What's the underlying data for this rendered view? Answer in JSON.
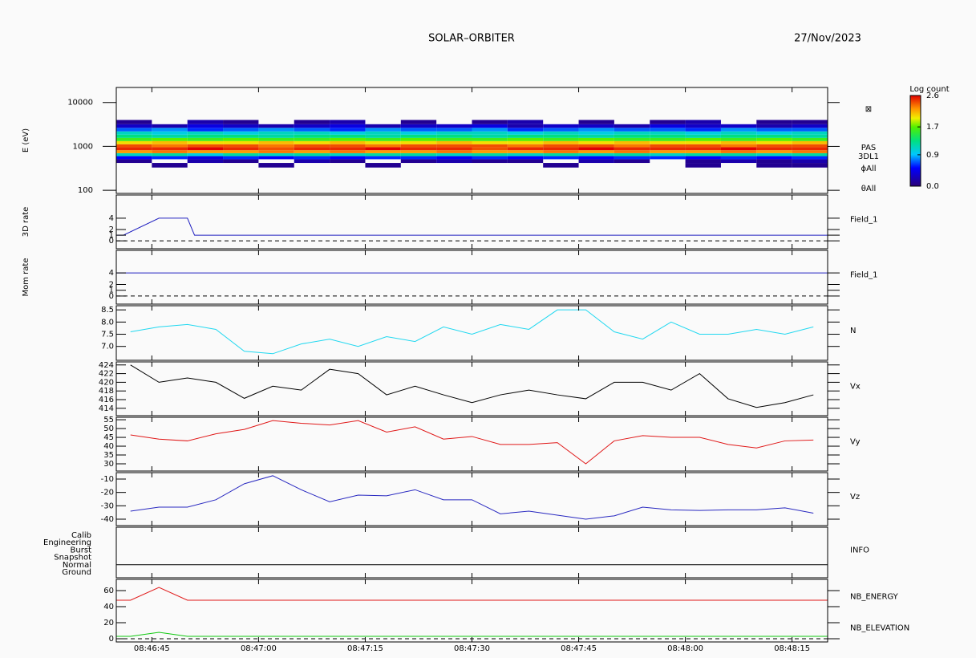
{
  "header": {
    "title": "SOLAR–ORBITER",
    "date": "27/Nov/2023"
  },
  "chart_data": [
    {
      "type": "heatmap",
      "ylabel": "E (eV)",
      "ylog": true,
      "ylim": [
        85,
        22000
      ],
      "yticks": [
        100,
        1000,
        10000
      ],
      "xlim": [
        "08:46:40",
        "08:48:20"
      ],
      "x_edges": [
        "08:46:40",
        "08:46:45",
        "08:46:50",
        "08:46:55",
        "08:47:00",
        "08:47:05",
        "08:47:10",
        "08:47:15",
        "08:47:20",
        "08:47:25",
        "08:47:30",
        "08:47:35",
        "08:47:40",
        "08:47:45",
        "08:47:50",
        "08:47:55",
        "08:48:00",
        "08:48:05",
        "08:48:10",
        "08:48:15",
        "08:48:20"
      ],
      "y_edges": [
        330,
        420,
        510,
        600,
        700,
        820,
        960,
        1120,
        1320,
        1560,
        1850,
        2200,
        2650,
        3200,
        4000
      ],
      "z": [
        [
          null,
          0.1,
          null,
          null,
          0.1,
          null,
          null,
          0.1,
          null,
          null,
          null,
          null,
          0.1,
          null,
          null,
          null,
          0.1,
          null,
          0.1,
          0.1
        ],
        [
          0.1,
          null,
          0.2,
          0.1,
          null,
          0.2,
          0.1,
          null,
          0.1,
          0.2,
          0.1,
          0.1,
          null,
          0.2,
          0.1,
          null,
          0.1,
          0.2,
          0.1,
          0.2
        ],
        [
          0.5,
          0.6,
          0.4,
          0.6,
          0.5,
          0.6,
          0.5,
          0.6,
          0.6,
          0.5,
          0.6,
          0.5,
          0.6,
          0.5,
          0.6,
          0.6,
          0.5,
          0.6,
          0.5,
          0.6
        ],
        [
          1.1,
          1.2,
          1.0,
          1.2,
          1.1,
          1.2,
          1.1,
          1.2,
          1.2,
          1.1,
          1.2,
          1.1,
          1.2,
          1.1,
          1.2,
          1.1,
          1.2,
          1.2,
          1.1,
          1.2
        ],
        [
          2.2,
          2.3,
          2.2,
          2.2,
          2.3,
          2.2,
          2.3,
          2.2,
          2.2,
          2.3,
          2.2,
          2.2,
          2.3,
          2.2,
          2.3,
          2.2,
          2.2,
          2.3,
          2.2,
          2.3
        ],
        [
          2.5,
          2.5,
          2.6,
          2.5,
          2.4,
          2.5,
          2.5,
          2.6,
          2.5,
          2.5,
          2.4,
          2.5,
          2.5,
          2.6,
          2.5,
          2.5,
          2.5,
          2.6,
          2.5,
          2.5
        ],
        [
          2.4,
          2.3,
          2.4,
          2.4,
          2.3,
          2.4,
          2.4,
          2.3,
          2.4,
          2.4,
          2.4,
          2.3,
          2.4,
          2.4,
          2.3,
          2.4,
          2.4,
          2.3,
          2.4,
          2.4
        ],
        [
          2.0,
          2.1,
          2.0,
          2.0,
          2.1,
          2.0,
          2.1,
          2.0,
          2.0,
          2.1,
          2.0,
          2.0,
          2.1,
          2.0,
          2.1,
          2.0,
          2.0,
          2.1,
          2.0,
          2.1
        ],
        [
          1.6,
          1.7,
          1.6,
          1.7,
          1.6,
          1.6,
          1.7,
          1.6,
          1.7,
          1.6,
          1.6,
          1.7,
          1.6,
          1.7,
          1.6,
          1.6,
          1.7,
          1.6,
          1.7,
          1.6
        ],
        [
          1.3,
          1.2,
          1.3,
          1.3,
          1.2,
          1.3,
          1.3,
          1.2,
          1.3,
          1.3,
          1.2,
          1.3,
          1.3,
          1.2,
          1.3,
          1.3,
          1.2,
          1.3,
          1.3,
          1.2
        ],
        [
          1.1,
          1.0,
          1.1,
          1.0,
          1.1,
          1.1,
          1.0,
          1.1,
          1.0,
          1.1,
          1.1,
          1.0,
          1.1,
          1.0,
          1.1,
          1.1,
          1.0,
          1.1,
          1.0,
          1.1
        ],
        [
          0.7,
          0.8,
          0.6,
          0.7,
          0.8,
          0.7,
          0.6,
          0.8,
          0.7,
          0.7,
          0.8,
          0.6,
          0.7,
          0.8,
          0.7,
          0.7,
          0.6,
          0.8,
          0.7,
          0.7
        ],
        [
          0.3,
          0.2,
          0.4,
          0.3,
          0.2,
          0.3,
          0.4,
          0.2,
          0.3,
          0.3,
          0.4,
          0.2,
          0.3,
          0.3,
          0.2,
          0.4,
          0.3,
          0.3,
          0.2,
          0.3
        ],
        [
          0.1,
          null,
          0.2,
          0.1,
          null,
          0.1,
          0.2,
          null,
          0.1,
          null,
          0.1,
          0.2,
          null,
          0.1,
          null,
          0.1,
          0.2,
          null,
          0.1,
          0.1
        ]
      ],
      "colormap": "rainbow",
      "colorbar": {
        "title": "Log count",
        "lim": [
          0,
          2.6
        ],
        "ticks": [
          {
            "value": 0,
            "label": "0.0"
          },
          0.9,
          1.7,
          2.6
        ]
      },
      "labels": [
        "⊠",
        "PAS",
        "3DL1",
        "ϕAll",
        "θAll"
      ]
    },
    {
      "type": "line",
      "ylabel": "3D rate",
      "ylim": [
        -1.4,
        8.1
      ],
      "yticks": [
        0,
        1,
        2,
        4
      ],
      "zero_line": true,
      "xlim": [
        "08:46:40",
        "08:48:20"
      ],
      "series": [
        {
          "name": "Field_1",
          "color": "#2020c0",
          "x": [
            "08:46:40",
            "08:46:41",
            "08:46:46",
            "08:46:50",
            "08:46:51",
            "08:48:20"
          ],
          "values": [
            1,
            1,
            4,
            4,
            1,
            1
          ]
        }
      ]
    },
    {
      "type": "line",
      "ylabel": "Mom rate",
      "ylim": [
        -1.4,
        7.9
      ],
      "yticks": [
        0,
        1,
        2,
        4
      ],
      "zero_line": true,
      "xlim": [
        "08:46:40",
        "08:48:20"
      ],
      "series": [
        {
          "name": "Field_1",
          "color": "#2020c0",
          "x": [
            "08:46:40",
            "08:48:20"
          ],
          "values": [
            4,
            4
          ]
        }
      ]
    },
    {
      "type": "line",
      "ylim": [
        6.43,
        8.67
      ],
      "yticks": [
        {
          "value": 7,
          "label": "7.0"
        },
        7.5,
        {
          "value": 8,
          "label": "8.0"
        },
        8.5
      ],
      "xlim": [
        "08:46:40",
        "08:48:20"
      ],
      "x": [
        "08:46:42",
        "08:46:46",
        "08:46:50",
        "08:46:54",
        "08:46:58",
        "08:47:02",
        "08:47:06",
        "08:47:10",
        "08:47:14",
        "08:47:18",
        "08:47:22",
        "08:47:26",
        "08:47:30",
        "08:47:34",
        "08:47:38",
        "08:47:42",
        "08:47:46",
        "08:47:50",
        "08:47:54",
        "08:47:58",
        "08:48:02",
        "08:48:06",
        "08:48:10",
        "08:48:14",
        "08:48:18"
      ],
      "series": [
        {
          "name": "N",
          "color": "#20d8f0",
          "values": [
            7.6,
            7.8,
            7.9,
            7.7,
            6.8,
            6.7,
            7.1,
            7.3,
            7.0,
            7.4,
            7.2,
            7.8,
            7.5,
            7.9,
            7.7,
            8.5,
            8.5,
            7.6,
            7.3,
            8.0,
            7.5,
            7.5,
            7.7,
            7.5,
            7.8
          ]
        }
      ]
    },
    {
      "type": "line",
      "ylim": [
        412.3,
        424.7
      ],
      "yticks": [
        414,
        416,
        418,
        420,
        422,
        424
      ],
      "xlim": [
        "08:46:40",
        "08:48:20"
      ],
      "x": [
        "08:46:42",
        "08:46:46",
        "08:46:50",
        "08:46:54",
        "08:46:58",
        "08:47:02",
        "08:47:06",
        "08:47:10",
        "08:47:14",
        "08:47:18",
        "08:47:22",
        "08:47:26",
        "08:47:30",
        "08:47:34",
        "08:47:38",
        "08:47:42",
        "08:47:46",
        "08:47:50",
        "08:47:54",
        "08:47:58",
        "08:48:02",
        "08:48:06",
        "08:48:10",
        "08:48:14",
        "08:48:18"
      ],
      "series": [
        {
          "name": "Vx",
          "color": "#000000",
          "values": [
            424,
            420,
            421,
            420,
            416.3,
            419.1,
            418.2,
            423,
            422,
            417.1,
            419.1,
            417.1,
            415.3,
            417.1,
            418.2,
            417.1,
            416.2,
            420,
            420,
            418.2,
            422,
            416.2,
            414.2,
            415.3,
            417.1
          ]
        }
      ]
    },
    {
      "type": "line",
      "ylim": [
        25.9,
        56.4
      ],
      "yticks": [
        30,
        35,
        40,
        45,
        50,
        55
      ],
      "xlim": [
        "08:46:40",
        "08:48:20"
      ],
      "x": [
        "08:46:42",
        "08:46:46",
        "08:46:50",
        "08:46:54",
        "08:46:58",
        "08:47:02",
        "08:47:06",
        "08:47:10",
        "08:47:14",
        "08:47:18",
        "08:47:22",
        "08:47:26",
        "08:47:30",
        "08:47:34",
        "08:47:38",
        "08:47:42",
        "08:47:46",
        "08:47:50",
        "08:47:54",
        "08:47:58",
        "08:48:02",
        "08:48:06",
        "08:48:10",
        "08:48:14",
        "08:48:18"
      ],
      "series": [
        {
          "name": "Vy",
          "color": "#e01818",
          "values": [
            46.4,
            44,
            43,
            47,
            49.5,
            54.5,
            53,
            52,
            54.5,
            48,
            51,
            44,
            45.5,
            41,
            41,
            42,
            30,
            43,
            46,
            45,
            45,
            41,
            39,
            43,
            43.5
          ]
        }
      ]
    },
    {
      "type": "line",
      "ylim": [
        -44.8,
        -5.2
      ],
      "yticks": [
        -40,
        -30,
        -20,
        -10
      ],
      "xlim": [
        "08:46:40",
        "08:48:20"
      ],
      "x": [
        "08:46:42",
        "08:46:46",
        "08:46:50",
        "08:46:54",
        "08:46:58",
        "08:47:02",
        "08:47:06",
        "08:47:10",
        "08:47:14",
        "08:47:18",
        "08:47:22",
        "08:47:26",
        "08:47:30",
        "08:47:34",
        "08:47:38",
        "08:47:42",
        "08:47:46",
        "08:47:50",
        "08:47:54",
        "08:47:58",
        "08:48:02",
        "08:48:06",
        "08:48:10",
        "08:48:14",
        "08:48:18"
      ],
      "series": [
        {
          "name": "Vz",
          "color": "#2828c0",
          "values": [
            -34,
            -31,
            -31,
            -25.5,
            -13.5,
            -7.5,
            -18,
            -27,
            -22,
            -22.5,
            -18,
            -25.5,
            -25.5,
            -36,
            -34,
            -37,
            -40,
            -37.5,
            -31,
            -33,
            -33.5,
            -33,
            -33,
            -31.5,
            -35.5
          ]
        }
      ]
    },
    {
      "type": "status",
      "levels": [
        "Calib",
        "Engineering",
        "Burst",
        "Snapshot",
        "Normal",
        "Ground"
      ],
      "xlim": [
        "08:46:40",
        "08:48:20"
      ],
      "series": [
        {
          "name": "INFO",
          "color": "#000000",
          "x": [
            "08:46:40",
            "08:48:20"
          ],
          "values": [
            "Normal",
            "Normal"
          ]
        }
      ]
    },
    {
      "type": "line",
      "ylim": [
        -4,
        74
      ],
      "yticks": [
        0,
        20,
        40,
        60
      ],
      "zero_line": true,
      "xlim": [
        "08:46:40",
        "08:48:20"
      ],
      "xticks": [
        "08:46:45",
        "08:47:00",
        "08:47:15",
        "08:47:30",
        "08:47:45",
        "08:48:00",
        "08:48:15"
      ],
      "x": [
        "08:46:40",
        "08:46:42",
        "08:46:46",
        "08:46:50",
        "08:48:20"
      ],
      "series": [
        {
          "name": "NB_ENERGY",
          "color": "#e01818",
          "values": [
            48,
            48,
            64,
            48,
            48
          ]
        },
        {
          "name": "NB_ELEVATION",
          "color": "#10c810",
          "values": [
            3,
            3,
            8,
            3,
            3
          ]
        }
      ]
    }
  ]
}
